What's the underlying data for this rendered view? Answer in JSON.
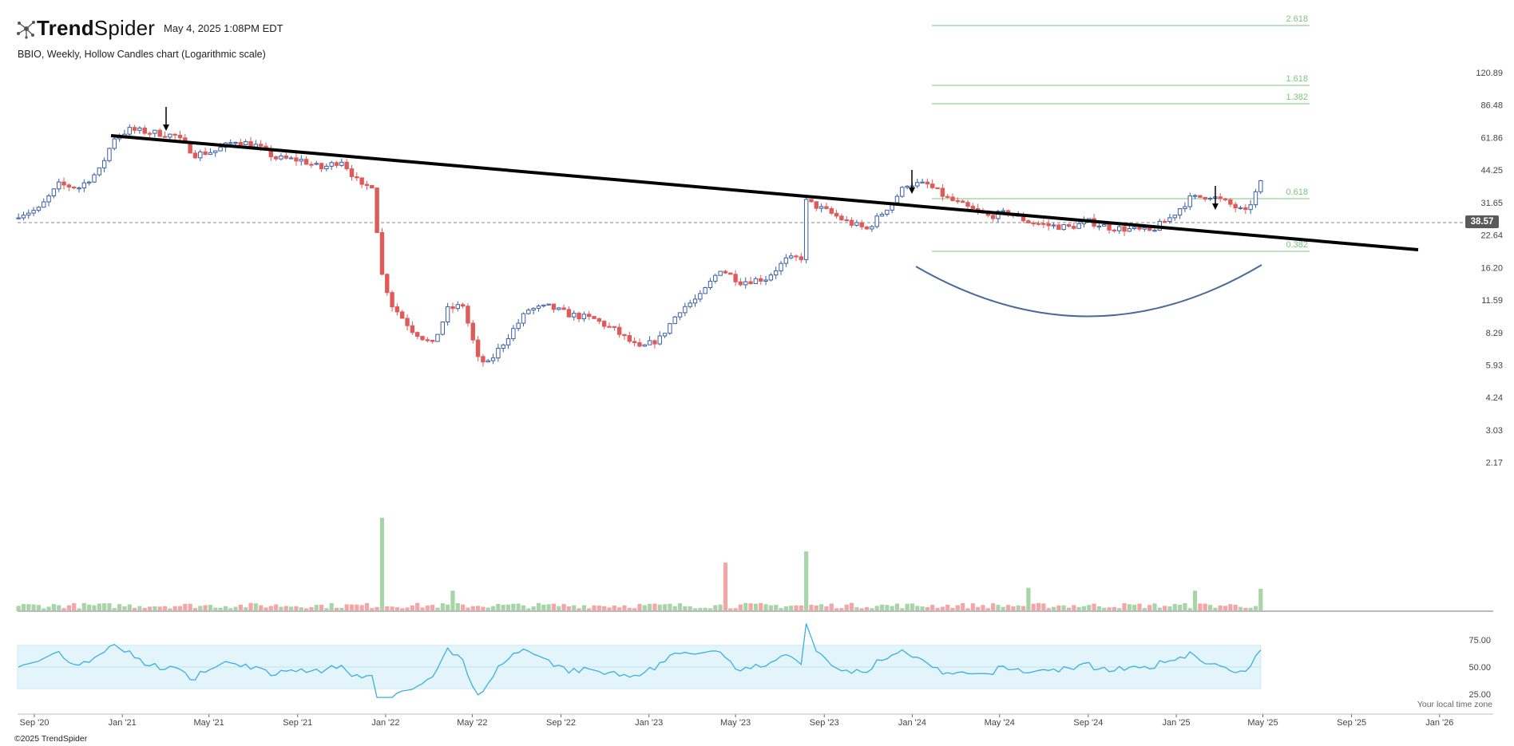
{
  "header": {
    "logo_text_bold": "Trend",
    "logo_text_light": "Spider",
    "timestamp": "May 4, 2025 1:08PM EDT",
    "chart_title": "BBIO, Weekly, Hollow Candles chart (Logarithmic scale)"
  },
  "footer": {
    "copyright": "©2025 TrendSpider",
    "timezone_note": "Your local time zone"
  },
  "colors": {
    "up": "#3b5ea8",
    "down": "#e05a5a",
    "vol_up": "#a8d5a8",
    "vol_down": "#f4a6a6",
    "rsi_line": "#3aaee0",
    "rsi_band": "#e3f5fb",
    "fib": "#7cc47c",
    "trendline": "#000000",
    "cup": "#4a6a9a"
  },
  "chart_data": {
    "type": "candlestick",
    "symbol": "BBIO",
    "interval": "Weekly",
    "style": "Hollow Candles",
    "scale": "log",
    "last_price": "38.57",
    "price_axis_ticks": [
      "120.89",
      "86.48",
      "61.86",
      "44.25",
      "31.65",
      "22.64",
      "16.20",
      "11.59",
      "8.29",
      "5.93",
      "4.24",
      "3.03",
      "2.17"
    ],
    "x_axis_ticks": [
      "Sep '20",
      "Jan '21",
      "May '21",
      "Sep '21",
      "Jan '22",
      "May '22",
      "Sep '22",
      "Jan '23",
      "May '23",
      "Sep '23",
      "Jan '24",
      "May '24",
      "Sep '24",
      "Jan '25",
      "May '25",
      "Sep '25",
      "Jan '26"
    ],
    "rsi_ticks": [
      "75.00",
      "50.00",
      "25.00"
    ],
    "fib_levels": [
      "2.618",
      "1.618",
      "1.382",
      "0.618",
      "0.382"
    ],
    "price_path": [
      [
        "2020-08-10",
        28.0
      ],
      [
        "2020-09-07",
        29.5
      ],
      [
        "2020-10-05",
        38.0
      ],
      [
        "2020-11-02",
        37.0
      ],
      [
        "2020-11-30",
        44.0
      ],
      [
        "2020-12-21",
        62.0
      ],
      [
        "2021-01-11",
        67.0
      ],
      [
        "2021-02-15",
        65.0
      ],
      [
        "2021-03-15",
        63.0
      ],
      [
        "2021-04-12",
        52.0
      ],
      [
        "2021-05-10",
        54.0
      ],
      [
        "2021-06-07",
        60.0
      ],
      [
        "2021-07-05",
        57.0
      ],
      [
        "2021-08-02",
        50.0
      ],
      [
        "2021-09-06",
        49.0
      ],
      [
        "2021-10-04",
        45.0
      ],
      [
        "2021-11-01",
        49.0
      ],
      [
        "2021-11-29",
        37.0
      ],
      [
        "2021-12-13",
        38.0
      ],
      [
        "2021-12-27",
        15.0
      ],
      [
        "2022-01-10",
        11.0
      ],
      [
        "2022-02-07",
        8.5
      ],
      [
        "2022-03-07",
        7.3
      ],
      [
        "2022-03-28",
        10.5
      ],
      [
        "2022-04-18",
        11.0
      ],
      [
        "2022-05-09",
        6.3
      ],
      [
        "2022-05-23",
        6.0
      ],
      [
        "2022-06-20",
        8.0
      ],
      [
        "2022-07-18",
        10.5
      ],
      [
        "2022-08-15",
        10.8
      ],
      [
        "2022-09-12",
        10.0
      ],
      [
        "2022-10-17",
        9.5
      ],
      [
        "2022-11-14",
        8.5
      ],
      [
        "2022-12-19",
        7.0
      ],
      [
        "2023-01-16",
        7.8
      ],
      [
        "2023-02-13",
        10.5
      ],
      [
        "2023-03-13",
        12.0
      ],
      [
        "2023-04-10",
        16.0
      ],
      [
        "2023-05-08",
        14.0
      ],
      [
        "2023-06-12",
        14.5
      ],
      [
        "2023-07-10",
        17.5
      ],
      [
        "2023-07-31",
        18.0
      ],
      [
        "2023-08-07",
        32.0
      ],
      [
        "2023-09-04",
        29.0
      ],
      [
        "2023-10-02",
        26.0
      ],
      [
        "2023-10-30",
        24.0
      ],
      [
        "2023-11-27",
        30.0
      ],
      [
        "2023-12-25",
        38.5
      ],
      [
        "2024-01-22",
        38.0
      ],
      [
        "2024-02-19",
        33.0
      ],
      [
        "2024-03-18",
        30.0
      ],
      [
        "2024-04-15",
        27.5
      ],
      [
        "2024-05-13",
        28.5
      ],
      [
        "2024-06-10",
        26.0
      ],
      [
        "2024-07-08",
        25.0
      ],
      [
        "2024-08-05",
        24.5
      ],
      [
        "2024-09-02",
        26.0
      ],
      [
        "2024-09-30",
        24.5
      ],
      [
        "2024-10-28",
        24.0
      ],
      [
        "2024-11-25",
        23.5
      ],
      [
        "2024-12-23",
        27.0
      ],
      [
        "2025-01-20",
        33.0
      ],
      [
        "2025-02-17",
        34.0
      ],
      [
        "2025-03-17",
        31.0
      ],
      [
        "2025-04-07",
        28.5
      ],
      [
        "2025-04-28",
        38.57
      ]
    ],
    "volume_spikes": [
      [
        "2021-12-27",
        "up",
        1.0
      ],
      [
        "2023-04-17",
        "down",
        0.52
      ],
      [
        "2023-08-07",
        "up",
        0.64
      ],
      [
        "2022-04-04",
        "up",
        0.22
      ],
      [
        "2024-06-10",
        "up",
        0.25
      ],
      [
        "2025-01-27",
        "up",
        0.22
      ],
      [
        "2025-04-28",
        "up",
        0.24
      ]
    ]
  }
}
